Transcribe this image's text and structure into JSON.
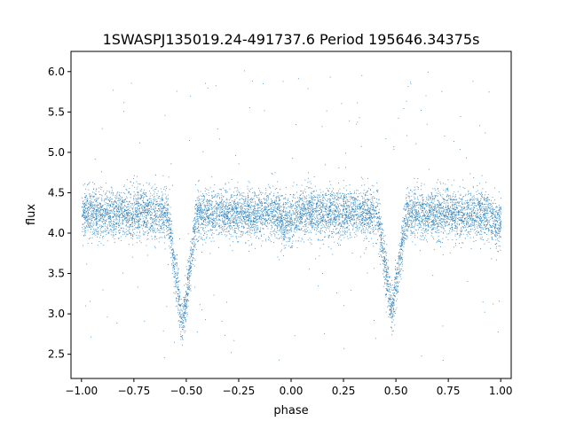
{
  "chart_data": {
    "type": "scatter",
    "title": "1SWASPJ135019.24-491737.6 Period 195646.34375s",
    "xlabel": "phase",
    "ylabel": "flux",
    "xlim": [
      -1.05,
      1.05
    ],
    "ylim": [
      2.2,
      6.25
    ],
    "xticks": [
      -1.0,
      -0.75,
      -0.5,
      -0.25,
      0.0,
      0.25,
      0.5,
      0.75,
      1.0
    ],
    "xtick_labels": [
      "−1.00",
      "−0.75",
      "−0.50",
      "−0.25",
      "0.00",
      "0.25",
      "0.50",
      "0.75",
      "1.00"
    ],
    "yticks": [
      2.5,
      3.0,
      3.5,
      4.0,
      4.5,
      5.0,
      5.5,
      6.0
    ],
    "ytick_labels": [
      "2.5",
      "3.0",
      "3.5",
      "4.0",
      "4.5",
      "5.0",
      "5.5",
      "6.0"
    ],
    "grid": false,
    "legend": "none",
    "color": "#1f77b4",
    "light_curve": {
      "baseline_flux": 4.25,
      "scatter_sd": 0.15,
      "eclipses": [
        {
          "phase": -0.52,
          "min_flux": 2.85,
          "half_width": 0.07
        },
        {
          "phase": 0.48,
          "min_flux": 3.0,
          "half_width": 0.07
        }
      ],
      "secondary_dips": [
        {
          "phase": -0.02,
          "depth": 0.15,
          "half_width": 0.05
        },
        {
          "phase": 0.98,
          "depth": 0.15,
          "half_width": 0.05
        }
      ],
      "phase_range": [
        -1.0,
        1.0
      ],
      "outlier_range": [
        2.4,
        6.05
      ]
    }
  }
}
